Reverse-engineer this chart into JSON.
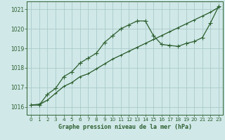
{
  "line1_x": [
    0,
    1,
    2,
    3,
    4,
    5,
    6,
    7,
    8,
    9,
    10,
    11,
    12,
    13,
    14,
    15,
    16,
    17,
    18,
    19,
    20,
    21,
    22,
    23
  ],
  "line1_y": [
    1016.1,
    1016.15,
    1016.35,
    1016.7,
    1017.05,
    1017.25,
    1017.55,
    1017.7,
    1017.95,
    1018.2,
    1018.45,
    1018.65,
    1018.85,
    1019.05,
    1019.25,
    1019.45,
    1019.65,
    1019.85,
    1020.05,
    1020.25,
    1020.45,
    1020.65,
    1020.85,
    1021.1
  ],
  "line2_x": [
    0,
    1,
    2,
    3,
    4,
    5,
    6,
    7,
    8,
    9,
    10,
    11,
    12,
    13,
    14,
    15,
    16,
    17,
    18,
    19,
    20,
    21,
    22,
    23
  ],
  "line2_y": [
    1016.1,
    1016.1,
    1016.65,
    1016.95,
    1017.55,
    1017.8,
    1018.25,
    1018.5,
    1018.75,
    1019.3,
    1019.65,
    1020.0,
    1020.2,
    1020.4,
    1020.4,
    1019.65,
    1019.2,
    1019.15,
    1019.1,
    1019.25,
    1019.35,
    1019.55,
    1020.3,
    1021.15
  ],
  "line3_x": [
    0,
    1,
    2,
    3,
    4,
    5,
    6,
    7,
    8,
    9,
    10,
    11,
    12,
    13,
    14,
    15,
    16,
    17,
    18,
    19,
    20,
    21,
    22,
    23
  ],
  "line3_y": [
    1016.1,
    1016.1,
    1016.35,
    1016.7,
    1017.05,
    1017.25,
    1017.55,
    1017.7,
    1017.95,
    1018.2,
    1018.45,
    1018.65,
    1018.85,
    1019.05,
    1019.25,
    1019.45,
    1019.65,
    1019.85,
    1020.05,
    1020.25,
    1020.45,
    1020.65,
    1020.85,
    1021.1
  ],
  "background_color": "#d0e8e8",
  "grid_color": "#aacaca",
  "line_color": "#2d6030",
  "title": "Graphe pression niveau de la mer (hPa)",
  "ylim": [
    1015.6,
    1021.4
  ],
  "xlim": [
    -0.5,
    23.5
  ],
  "yticks": [
    1016,
    1017,
    1018,
    1019,
    1020,
    1021
  ],
  "xticks": [
    0,
    1,
    2,
    3,
    4,
    5,
    6,
    7,
    8,
    9,
    10,
    11,
    12,
    13,
    14,
    15,
    16,
    17,
    18,
    19,
    20,
    21,
    22,
    23
  ]
}
